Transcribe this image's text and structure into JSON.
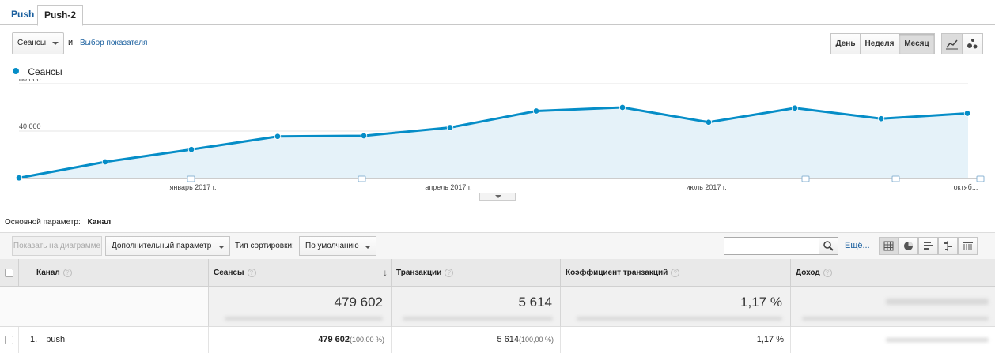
{
  "tabs": [
    "Push",
    "Push-2"
  ],
  "controls": {
    "metric_select": "Сеансы",
    "and_text": "и",
    "metric_link": "Выбор показателя",
    "periods": [
      "День",
      "Неделя",
      "Месяц"
    ],
    "active_period": "Месяц",
    "chart_types": [
      "line-chart-icon",
      "motion-chart-icon"
    ]
  },
  "legend": {
    "series_label": "Сеансы"
  },
  "chart_data": {
    "type": "area",
    "series": [
      {
        "name": "Сеансы",
        "color": "#058dc7",
        "values": [
          500,
          14000,
          24500,
          35500,
          36000,
          43000,
          57000,
          60000,
          47500,
          59500,
          50500,
          55000
        ]
      }
    ],
    "x_labels": [
      "январь 2017 г.",
      "апрель 2017 г.",
      "июль 2017 г.",
      "октяб..."
    ],
    "y_ticks": [
      "80 000",
      "40 000"
    ],
    "ylim": [
      0,
      80000
    ],
    "grid": true
  },
  "dimension": {
    "label": "Основной параметр:",
    "value": "Канал"
  },
  "table_controls": {
    "plot_button": "Показать на диаграмме",
    "secondary_dim": "Дополнительный параметр",
    "sort_label": "Тип сортировки:",
    "sort_value": "По умолчанию",
    "more": "Ещё..."
  },
  "table": {
    "columns": [
      "Канал",
      "Сеансы",
      "Транзакции",
      "Коэффициент транзакций",
      "Доход"
    ],
    "totals": [
      "479 602",
      "5 614",
      "1,17 %"
    ],
    "rows": [
      {
        "index": "1.",
        "channel": "push",
        "sessions": "479 602",
        "sessions_pct": "(100,00 %)",
        "transactions": "5 614",
        "transactions_pct": "(100,00 %)",
        "rate": "1,17 %"
      }
    ]
  }
}
